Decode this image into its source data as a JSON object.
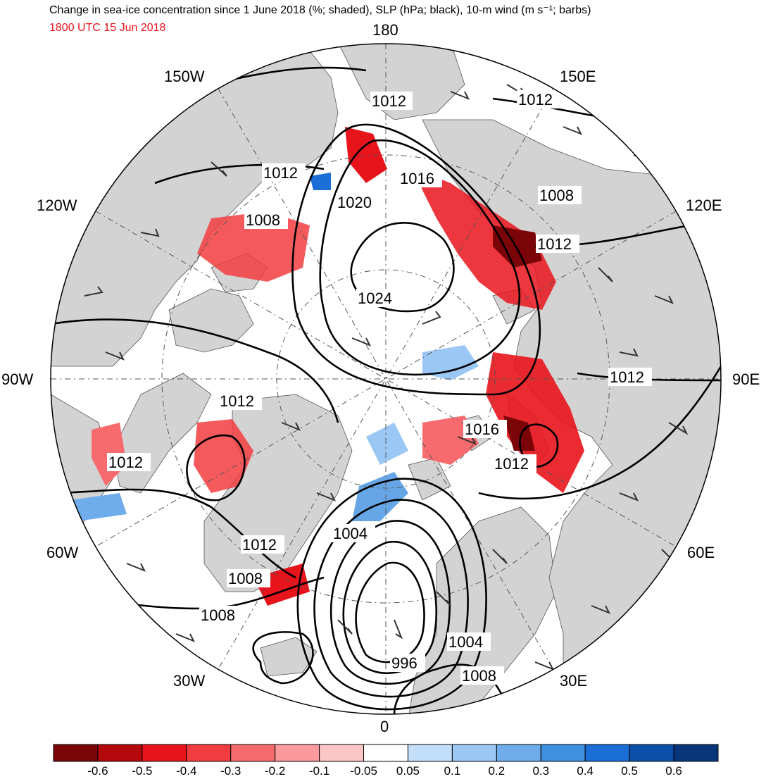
{
  "title": {
    "main": "Change in sea-ice concentration since 1 June 2018 (%; shaded), SLP (hPa; black), 10-m wind (m s⁻¹; barbs)",
    "valid_time": "1800 UTC 15 Jun 2018",
    "valid_time_color": "#e8141b"
  },
  "longitude_labels": {
    "top": "180",
    "bottom": "0",
    "left": "90W",
    "right": "90E",
    "upper_left": "150W",
    "upper_right": "150E",
    "left_upper": "120W",
    "right_upper": "120E",
    "left_lower": "60W",
    "right_lower": "60E",
    "lower_left": "30W",
    "lower_right": "30E"
  },
  "slp_contour_labels": {
    "l1012_top": "1012",
    "l1012_ne": "1012",
    "l1012_nw": "1012",
    "l1016_n": "1016",
    "l1008_ne": "1008",
    "l1020": "1020",
    "l1008_nw": "1008",
    "l1012_e1": "1012",
    "l1024": "1024",
    "l1012_e2": "1012",
    "l1012_w1": "1012",
    "l1016_c": "1016",
    "l1012_c": "1012",
    "l1012_w2": "1012",
    "l1004_a": "1004",
    "l1012_sw": "1012",
    "l1008_sw1": "1008",
    "l1008_sw2": "1008",
    "l1004_b": "1004",
    "l996": "996",
    "l1008_s": "1008"
  },
  "colorbar": {
    "tick_labels": [
      "-0.6",
      "-0.5",
      "-0.4",
      "-0.3",
      "-0.2",
      "-0.1",
      "-0.05",
      "0.05",
      "0.1",
      "0.2",
      "0.3",
      "0.4",
      "0.5",
      "0.6"
    ],
    "colors": [
      "#7a0407",
      "#b5080d",
      "#e8141b",
      "#f23d40",
      "#f76b6e",
      "#fa9a9c",
      "#fcc5c6",
      "#ffffff",
      "#c3def9",
      "#9bc7f4",
      "#6eaceb",
      "#4090e0",
      "#1a6ed6",
      "#0a4fa8",
      "#08357a"
    ]
  },
  "colors": {
    "land": "#d3d3d3",
    "ocean": "#ffffff",
    "contour": "#000000"
  }
}
